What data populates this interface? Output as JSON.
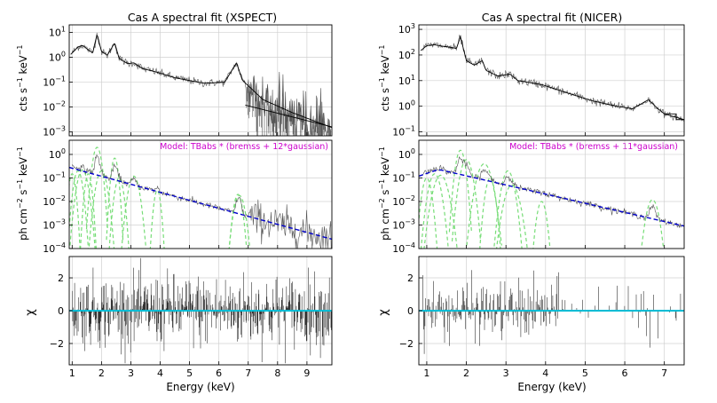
{
  "chart_data": [
    {
      "type": "line",
      "title": "Cas A spectral fit (XSPECT)",
      "xlabel": "Energy (keV)",
      "xlim": [
        0.9,
        9.85
      ],
      "x_ticks": [
        1,
        2,
        3,
        4,
        5,
        6,
        7,
        8,
        9
      ],
      "model_label": "Model: TBabs * (bremss + 12*gaussian)",
      "panels": [
        {
          "name": "counts",
          "ylabel_main": "cts s",
          "ylabel_sup1": "−1",
          "ylabel_mid": " keV",
          "ylabel_sup2": "−1",
          "yscale": "log",
          "ylim": [
            0.0007,
            20
          ],
          "y_ticks": [
            {
              "base": "10",
              "exp": "−3",
              "value": 0.001
            },
            {
              "base": "10",
              "exp": "−2",
              "value": 0.01
            },
            {
              "base": "10",
              "exp": "−1",
              "value": 0.1
            },
            {
              "base": "10",
              "exp": "0",
              "value": 1
            },
            {
              "base": "10",
              "exp": "1",
              "value": 10
            }
          ]
        },
        {
          "name": "unfolded",
          "ylabel_main": "ph cm",
          "ylabel_sup1": "−2",
          "ylabel_mid": " s",
          "ylabel_sup2": "−1",
          "ylabel_end": " keV",
          "ylabel_sup3": "−1",
          "yscale": "log",
          "ylim": [
            0.0001,
            4
          ],
          "y_ticks": [
            {
              "base": "10",
              "exp": "−4",
              "value": 0.0001
            },
            {
              "base": "10",
              "exp": "−3",
              "value": 0.001
            },
            {
              "base": "10",
              "exp": "−2",
              "value": 0.01
            },
            {
              "base": "10",
              "exp": "−1",
              "value": 0.1
            },
            {
              "base": "10",
              "exp": "0",
              "value": 1
            }
          ]
        },
        {
          "name": "residuals",
          "ylabel_main": "χ",
          "yscale": "linear",
          "ylim": [
            -3.3,
            3.3
          ],
          "y_ticks": [
            {
              "label": "−2",
              "value": -2
            },
            {
              "label": "0",
              "value": 0
            },
            {
              "label": "2",
              "value": 2
            }
          ]
        }
      ],
      "series": [
        {
          "name": "continuum",
          "color": "#0000cc",
          "style": "dashed",
          "points": [
            [
              0.9,
              0.28
            ],
            [
              9.85,
              0.00025
            ]
          ]
        },
        {
          "name": "counts_model",
          "color": "#000000",
          "points": [
            [
              0.95,
              1.3
            ],
            [
              1.2,
              2.6
            ],
            [
              1.35,
              3.0
            ],
            [
              1.5,
              2.2
            ],
            [
              1.7,
              1.5
            ],
            [
              1.85,
              8.5
            ],
            [
              2.0,
              1.7
            ],
            [
              2.2,
              1.2
            ],
            [
              2.45,
              3.8
            ],
            [
              2.6,
              0.9
            ],
            [
              2.9,
              0.55
            ],
            [
              3.1,
              0.6
            ],
            [
              3.4,
              0.35
            ],
            [
              3.9,
              0.25
            ],
            [
              4.5,
              0.15
            ],
            [
              5.5,
              0.09
            ],
            [
              6.2,
              0.1
            ],
            [
              6.6,
              0.6
            ],
            [
              6.8,
              0.12
            ],
            [
              7.5,
              0.02
            ],
            [
              8.5,
              0.006
            ],
            [
              9.85,
              0.0015
            ]
          ]
        },
        {
          "name": "gaussian_lines",
          "color": "#77dd77",
          "style": "dashed",
          "peaks": [
            [
              1.0,
              0.15
            ],
            [
              1.2,
              0.2
            ],
            [
              1.35,
              0.22
            ],
            [
              1.55,
              0.15
            ],
            [
              1.85,
              2.0
            ],
            [
              2.0,
              0.2
            ],
            [
              2.45,
              0.7
            ],
            [
              2.6,
              0.1
            ],
            [
              3.1,
              0.12
            ],
            [
              3.9,
              0.03
            ],
            [
              6.65,
              0.02
            ],
            [
              6.7,
              0.018
            ]
          ]
        }
      ]
    },
    {
      "type": "line",
      "title": "Cas A spectral fit (NICER)",
      "xlabel": "Energy (keV)",
      "xlim": [
        0.8,
        7.5
      ],
      "x_ticks": [
        1,
        2,
        3,
        4,
        5,
        6,
        7
      ],
      "model_label": "Model: TBabs * (bremss + 11*gaussian)",
      "panels": [
        {
          "name": "counts",
          "ylabel_main": "cts s",
          "ylabel_sup1": "−1",
          "ylabel_mid": " keV",
          "ylabel_sup2": "−1",
          "yscale": "log",
          "ylim": [
            0.07,
            1500
          ],
          "y_ticks": [
            {
              "base": "10",
              "exp": "−1",
              "value": 0.1
            },
            {
              "base": "10",
              "exp": "0",
              "value": 1
            },
            {
              "base": "10",
              "exp": "1",
              "value": 10
            },
            {
              "base": "10",
              "exp": "2",
              "value": 100
            },
            {
              "base": "10",
              "exp": "3",
              "value": 1000
            }
          ]
        },
        {
          "name": "unfolded",
          "ylabel_main": "ph cm",
          "ylabel_sup1": "−2",
          "ylabel_mid": " s",
          "ylabel_sup2": "−1",
          "ylabel_end": " keV",
          "ylabel_sup3": "−1",
          "yscale": "log",
          "ylim": [
            0.0001,
            4
          ],
          "y_ticks": [
            {
              "base": "10",
              "exp": "−4",
              "value": 0.0001
            },
            {
              "base": "10",
              "exp": "−3",
              "value": 0.001
            },
            {
              "base": "10",
              "exp": "−2",
              "value": 0.01
            },
            {
              "base": "10",
              "exp": "−1",
              "value": 0.1
            },
            {
              "base": "10",
              "exp": "0",
              "value": 1
            }
          ]
        },
        {
          "name": "residuals",
          "ylabel_main": "χ",
          "yscale": "linear",
          "ylim": [
            -3.3,
            3.3
          ],
          "y_ticks": [
            {
              "label": "−2",
              "value": -2
            },
            {
              "label": "0",
              "value": 0
            },
            {
              "label": "2",
              "value": 2
            }
          ]
        }
      ],
      "series": [
        {
          "name": "continuum",
          "color": "#0000cc",
          "style": "dashed",
          "points": [
            [
              0.8,
              0.12
            ],
            [
              1.3,
              0.23
            ],
            [
              7.5,
              0.0009
            ]
          ]
        },
        {
          "name": "counts_model",
          "color": "#000000",
          "points": [
            [
              0.85,
              150
            ],
            [
              1.0,
              230
            ],
            [
              1.2,
              250
            ],
            [
              1.4,
              220
            ],
            [
              1.6,
              200
            ],
            [
              1.75,
              180
            ],
            [
              1.85,
              520
            ],
            [
              2.0,
              60
            ],
            [
              2.2,
              40
            ],
            [
              2.4,
              60
            ],
            [
              2.5,
              25
            ],
            [
              2.8,
              15
            ],
            [
              3.1,
              18
            ],
            [
              3.3,
              10
            ],
            [
              3.9,
              7
            ],
            [
              4.5,
              3.5
            ],
            [
              5.2,
              1.6
            ],
            [
              5.8,
              1.0
            ],
            [
              6.2,
              0.8
            ],
            [
              6.6,
              1.8
            ],
            [
              6.8,
              0.9
            ],
            [
              7.0,
              0.5
            ],
            [
              7.5,
              0.3
            ]
          ]
        },
        {
          "name": "gaussian_lines",
          "color": "#77dd77",
          "style": "dashed",
          "peaks": [
            [
              1.0,
              0.1
            ],
            [
              1.2,
              0.15
            ],
            [
              1.35,
              0.13
            ],
            [
              1.85,
              1.5
            ],
            [
              2.0,
              0.6
            ],
            [
              2.45,
              0.4
            ],
            [
              2.6,
              0.1
            ],
            [
              3.05,
              0.2
            ],
            [
              3.15,
              0.05
            ],
            [
              3.9,
              0.01
            ],
            [
              6.7,
              0.012
            ]
          ]
        }
      ]
    }
  ]
}
